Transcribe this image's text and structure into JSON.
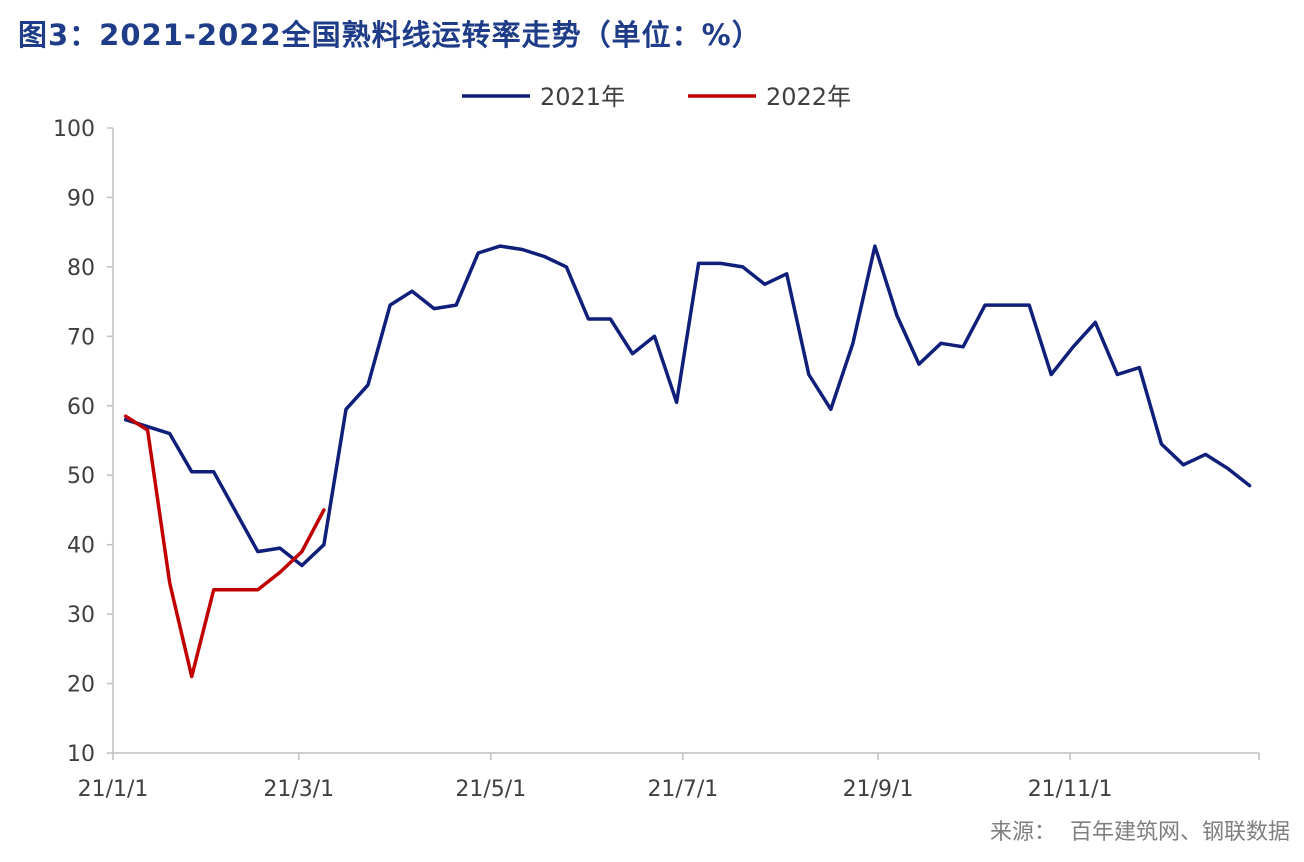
{
  "chart_data": {
    "type": "line",
    "title": "图3：2021-2022全国熟料线运转率走势（单位：%）",
    "source": "来源：  百年建筑网、钢联数据",
    "ylim": [
      10,
      100
    ],
    "yticks": [
      10,
      20,
      30,
      40,
      50,
      60,
      70,
      80,
      90,
      100
    ],
    "x_tick_labels": [
      {
        "date": "2021-01-01",
        "label": "21/1/1"
      },
      {
        "date": "2021-03-01",
        "label": "21/3/1"
      },
      {
        "date": "2021-05-01",
        "label": "21/5/1"
      },
      {
        "date": "2021-07-01",
        "label": "21/7/1"
      },
      {
        "date": "2021-09-01",
        "label": "21/9/1"
      },
      {
        "date": "2021-11-01",
        "label": "21/11/1"
      }
    ],
    "xlim": [
      "2021-01-01",
      "2021-12-31"
    ],
    "grid": false,
    "legend_position": "top-center",
    "series": [
      {
        "name": "2021年",
        "color": "#0f1f7a",
        "points": [
          [
            "2021-01-05",
            58
          ],
          [
            "2021-01-19",
            56
          ],
          [
            "2021-01-26",
            50.5
          ],
          [
            "2021-02-02",
            50.5
          ],
          [
            "2021-02-16",
            39
          ],
          [
            "2021-02-23",
            39.5
          ],
          [
            "2021-03-02",
            37
          ],
          [
            "2021-03-09",
            40
          ],
          [
            "2021-03-16",
            59.5
          ],
          [
            "2021-03-23",
            63
          ],
          [
            "2021-03-30",
            74.5
          ],
          [
            "2021-04-06",
            76.5
          ],
          [
            "2021-04-13",
            74
          ],
          [
            "2021-04-20",
            74.5
          ],
          [
            "2021-04-27",
            82
          ],
          [
            "2021-05-04",
            83
          ],
          [
            "2021-05-11",
            82.5
          ],
          [
            "2021-05-18",
            81.5
          ],
          [
            "2021-05-25",
            80
          ],
          [
            "2021-06-01",
            72.5
          ],
          [
            "2021-06-08",
            72.5
          ],
          [
            "2021-06-15",
            67.5
          ],
          [
            "2021-06-22",
            70
          ],
          [
            "2021-06-29",
            60.5
          ],
          [
            "2021-07-06",
            80.5
          ],
          [
            "2021-07-13",
            80.5
          ],
          [
            "2021-07-20",
            80
          ],
          [
            "2021-07-27",
            77.5
          ],
          [
            "2021-08-03",
            79
          ],
          [
            "2021-08-10",
            64.5
          ],
          [
            "2021-08-17",
            59.5
          ],
          [
            "2021-08-24",
            69
          ],
          [
            "2021-08-31",
            83
          ],
          [
            "2021-09-07",
            73
          ],
          [
            "2021-09-14",
            66
          ],
          [
            "2021-09-21",
            69
          ],
          [
            "2021-09-28",
            68.5
          ],
          [
            "2021-10-05",
            74.5
          ],
          [
            "2021-10-12",
            74.5
          ],
          [
            "2021-10-19",
            74.5
          ],
          [
            "2021-10-26",
            64.5
          ],
          [
            "2021-11-02",
            68.5
          ],
          [
            "2021-11-09",
            72
          ],
          [
            "2021-11-16",
            64.5
          ],
          [
            "2021-11-23",
            65.5
          ],
          [
            "2021-11-30",
            54.5
          ],
          [
            "2021-12-07",
            51.5
          ],
          [
            "2021-12-14",
            53
          ],
          [
            "2021-12-21",
            51
          ],
          [
            "2021-12-28",
            48.5
          ]
        ]
      },
      {
        "name": "2022年",
        "color": "#c00000",
        "points": [
          [
            "2022-01-05",
            58.5
          ],
          [
            "2022-01-12",
            56.5
          ],
          [
            "2022-01-19",
            34.5
          ],
          [
            "2022-01-26",
            21
          ],
          [
            "2022-02-02",
            33.5
          ],
          [
            "2022-02-09",
            33.5
          ],
          [
            "2022-02-16",
            33.5
          ],
          [
            "2022-02-23",
            36
          ],
          [
            "2022-03-02",
            39
          ],
          [
            "2022-03-09",
            45
          ]
        ]
      }
    ]
  }
}
